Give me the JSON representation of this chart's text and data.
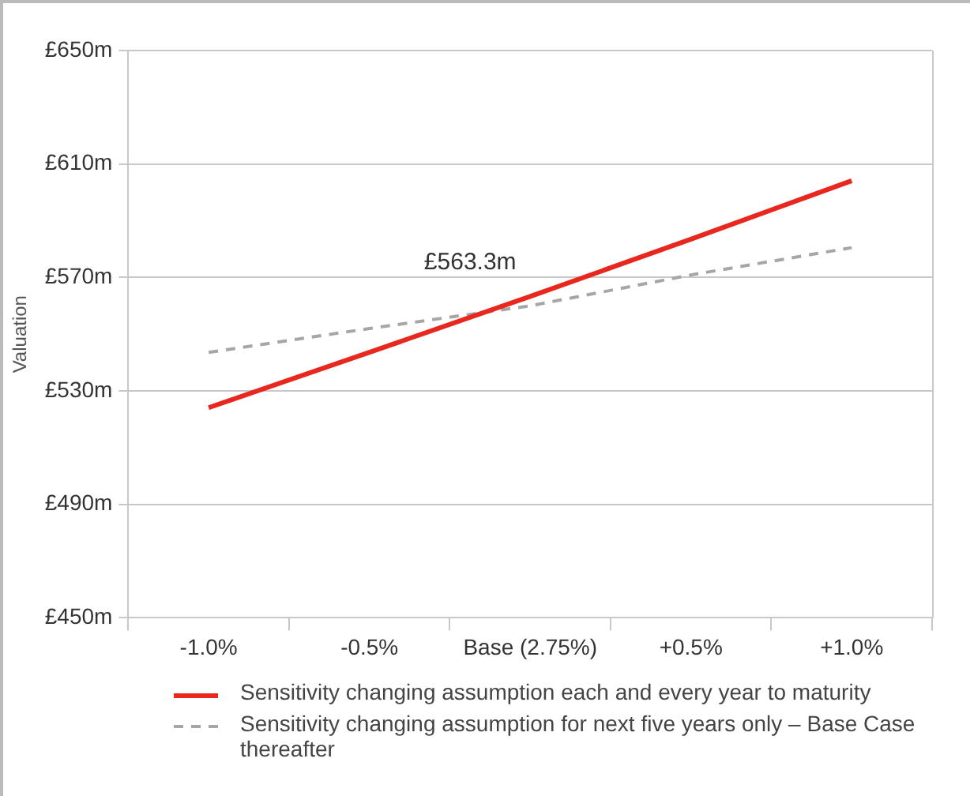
{
  "chart_data": {
    "type": "line",
    "ylabel": "Valuation",
    "categories": [
      "-1.0%",
      "-0.5%",
      "Base (2.75%)",
      "+0.5%",
      "+1.0%"
    ],
    "series": [
      {
        "name": "Sensitivity changing assumption each and every year to maturity",
        "color": "#e8281e",
        "line_style": "solid",
        "values": [
          524.1,
          543.6,
          563.3,
          583.5,
          604.1
        ]
      },
      {
        "name": "Sensitivity changing assumption for next five years only – Base Case thereafter",
        "color": "#a6a6a6",
        "line_style": "dashed",
        "values": [
          543.6,
          552,
          560,
          570.9,
          580.5
        ]
      }
    ],
    "ylim": [
      450,
      650
    ],
    "yticks": [
      {
        "value": 450,
        "label": "£450m"
      },
      {
        "value": 490,
        "label": "£490m"
      },
      {
        "value": 530,
        "label": "£530m"
      },
      {
        "value": 570,
        "label": "£570m"
      },
      {
        "value": 610,
        "label": "£610m"
      },
      {
        "value": 650,
        "label": "£650m"
      }
    ],
    "grid": "y",
    "legend": "bottom",
    "marker": "none",
    "annotations": [
      {
        "text": "£563.3m",
        "x": "Base (2.75%)",
        "y": 563.3
      }
    ]
  }
}
